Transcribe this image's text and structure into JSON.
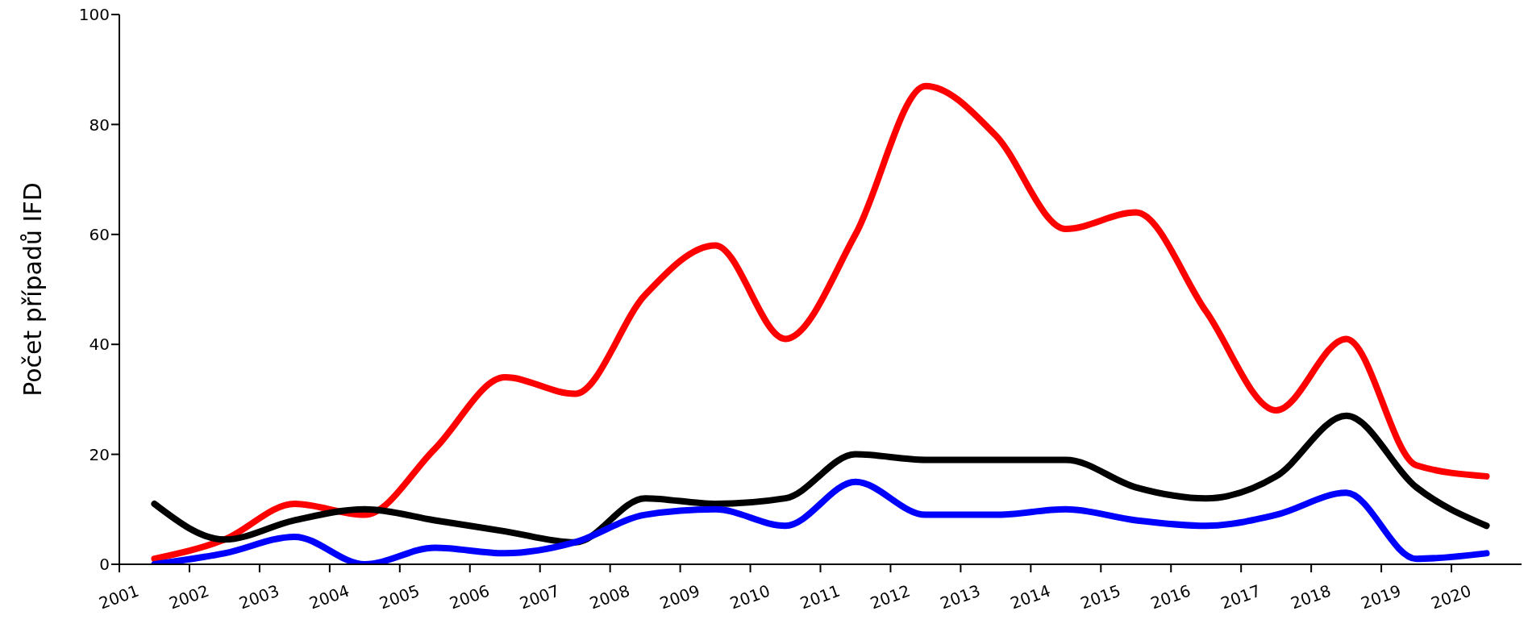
{
  "chart_data": {
    "type": "line",
    "ylabel": "Počet případů IFD",
    "x": [
      2001.5,
      2002.5,
      2003.5,
      2004.5,
      2005.5,
      2006.5,
      2007.5,
      2008.5,
      2009.5,
      2010.5,
      2011.5,
      2012.5,
      2013.5,
      2014.5,
      2015.5,
      2016.5,
      2017.5,
      2018.5,
      2019.5,
      2020.5
    ],
    "series": [
      {
        "color": "#ff0000",
        "values": [
          1,
          4.5,
          11,
          9,
          21,
          34,
          31,
          49,
          58,
          41,
          60,
          87,
          78,
          61,
          64,
          46,
          28,
          41,
          18,
          16
        ]
      },
      {
        "color": "#000000",
        "values": [
          11,
          4.5,
          8,
          10,
          8,
          6,
          4,
          12,
          11,
          12,
          20,
          19,
          19,
          19,
          14,
          12,
          16,
          27,
          14,
          7
        ]
      },
      {
        "color": "#0000ff",
        "values": [
          0,
          2,
          5,
          0,
          3,
          2,
          4,
          9,
          10,
          7,
          15,
          9,
          9,
          10,
          8,
          7,
          9,
          13,
          1,
          2
        ]
      }
    ],
    "xlim": [
      2001,
      2021
    ],
    "xticks": [
      2001,
      2002,
      2003,
      2004,
      2005,
      2006,
      2007,
      2008,
      2009,
      2010,
      2011,
      2012,
      2013,
      2014,
      2015,
      2016,
      2017,
      2018,
      2019,
      2020
    ],
    "ylim": [
      0,
      100
    ],
    "yticks": [
      0,
      20,
      40,
      60,
      80,
      100
    ],
    "line_style": "solid"
  }
}
